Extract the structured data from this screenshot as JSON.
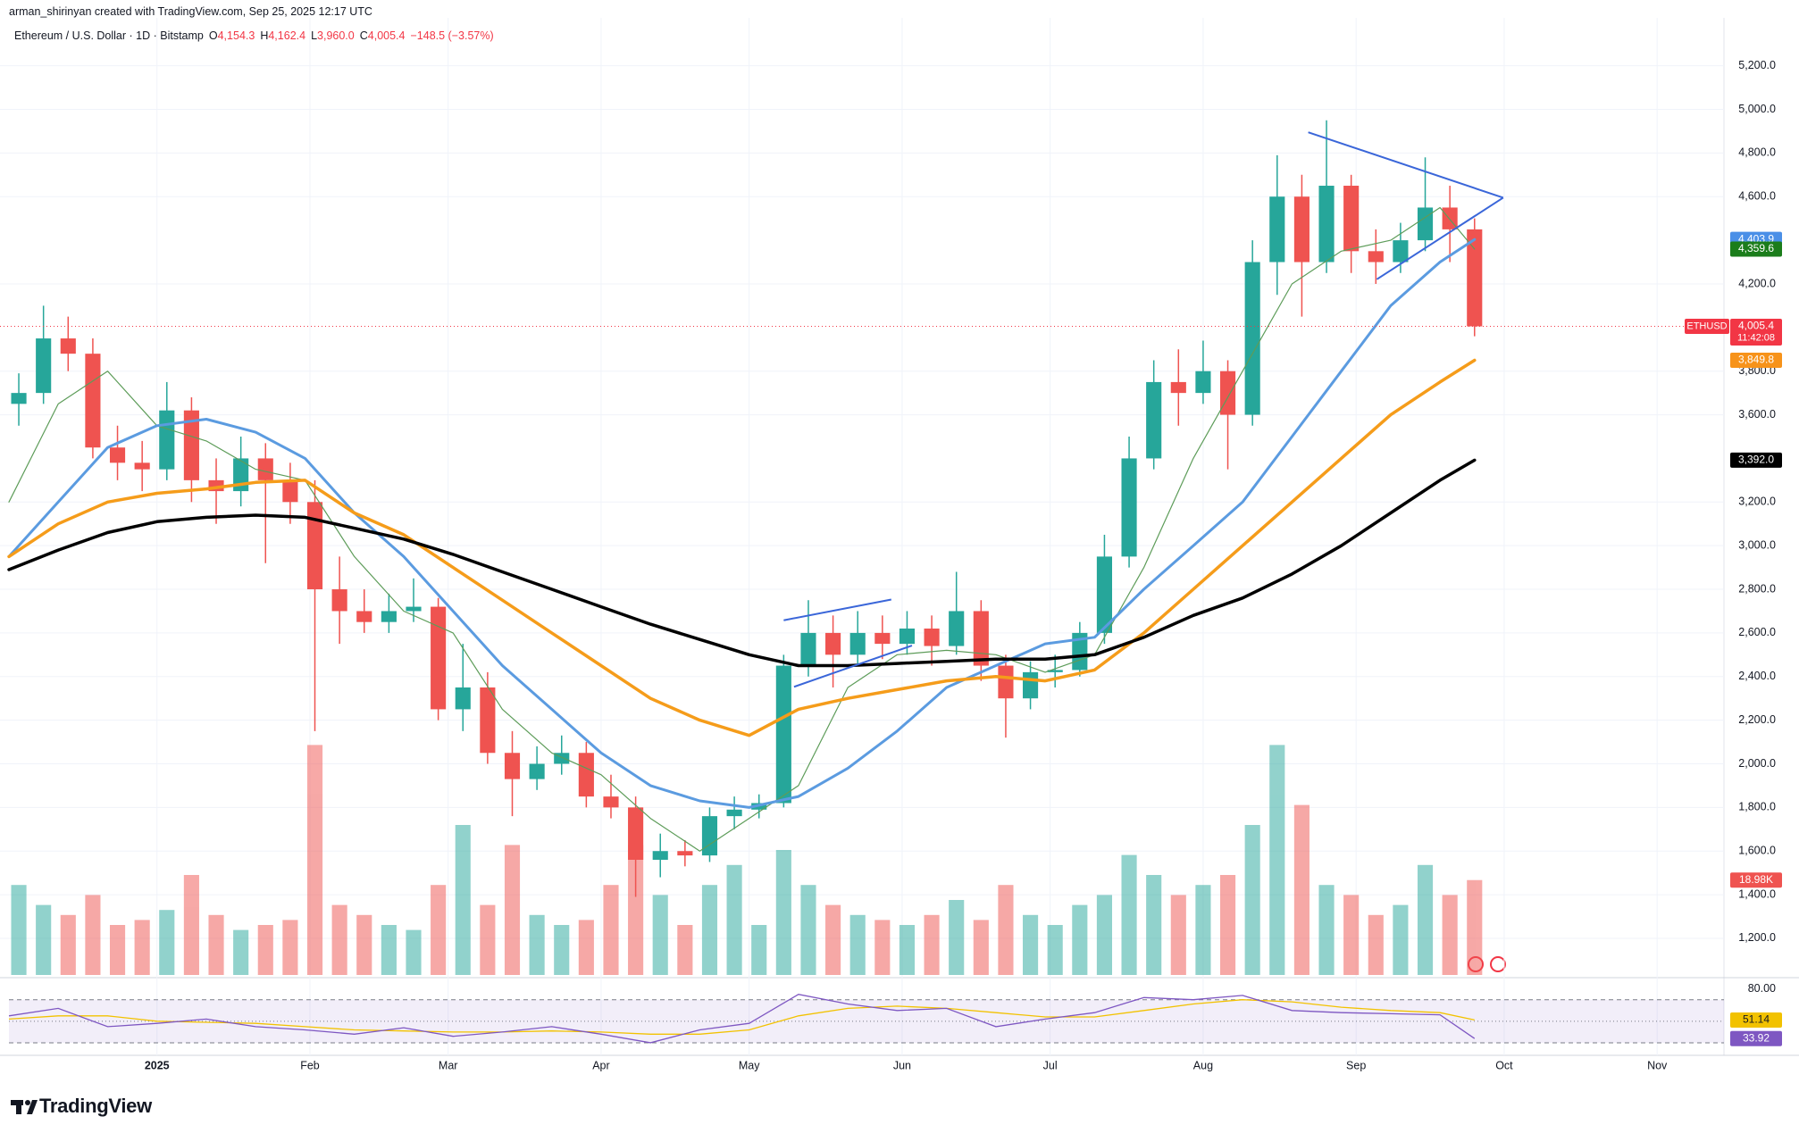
{
  "header": {
    "credit": "arman_shirinyan created with TradingView.com, Sep 25, 2025 12:17 UTC",
    "symbol": "Ethereum / U.S. Dollar · 1D · Bitstamp",
    "ohlc": [
      [
        "O",
        "4,154.3"
      ],
      [
        "H",
        "4,162.4"
      ],
      [
        "L",
        "3,960.0"
      ],
      [
        "C",
        "4,005.4"
      ]
    ],
    "change": "−148.5 (−3.57%)"
  },
  "chart_data": {
    "type": "candlestick",
    "xlim": [
      -30,
      317
    ],
    "xticks": [
      {
        "value": 0,
        "label": "2025"
      },
      {
        "value": 31,
        "label": "Feb"
      },
      {
        "value": 59,
        "label": "Mar"
      },
      {
        "value": 90,
        "label": "Apr"
      },
      {
        "value": 120,
        "label": "May"
      },
      {
        "value": 151,
        "label": "Jun"
      },
      {
        "value": 181,
        "label": "Jul"
      },
      {
        "value": 212,
        "label": "Aug"
      },
      {
        "value": 243,
        "label": "Sep"
      },
      {
        "value": 273,
        "label": "Oct"
      },
      {
        "value": 304,
        "label": "Nov"
      }
    ],
    "ylim": [
      1032,
      5395
    ],
    "yticks": [
      {
        "value": 5200,
        "label": "5,200.0"
      },
      {
        "value": 5000,
        "label": "5,000.0"
      },
      {
        "value": 4800,
        "label": "4,800.0"
      },
      {
        "value": 4600,
        "label": "4,600.0"
      },
      {
        "value": 4200,
        "label": "4,200.0"
      },
      {
        "value": 3800,
        "label": "3,800.0"
      },
      {
        "value": 3600,
        "label": "3,600.0"
      },
      {
        "value": 3200,
        "label": "3,200.0"
      },
      {
        "value": 3000,
        "label": "3,000.0"
      },
      {
        "value": 2800,
        "label": "2,800.0"
      },
      {
        "value": 2600,
        "label": "2,600.0"
      },
      {
        "value": 2400,
        "label": "2,400.0"
      },
      {
        "value": 2200,
        "label": "2,200.0"
      },
      {
        "value": 2000,
        "label": "2,000.0"
      },
      {
        "value": 1800,
        "label": "1,800.0"
      },
      {
        "value": 1600,
        "label": "1,600.0"
      },
      {
        "value": 1400,
        "label": "1,400.0"
      },
      {
        "value": 1200,
        "label": "1,200.0"
      }
    ],
    "grid": true,
    "up_color": "#26a69a",
    "down_color": "#ef5350",
    "candles": {
      "x": [
        -28,
        -23,
        -18,
        -13,
        -8,
        -3,
        2,
        7,
        12,
        17,
        22,
        27,
        32,
        37,
        42,
        47,
        52,
        57,
        62,
        67,
        72,
        77,
        82,
        87,
        92,
        97,
        102,
        107,
        112,
        117,
        122,
        127,
        132,
        137,
        142,
        147,
        152,
        157,
        162,
        167,
        172,
        177,
        182,
        187,
        192,
        197,
        202,
        207,
        212,
        217,
        222,
        227,
        232,
        237,
        242,
        247,
        252,
        257,
        262,
        267
      ],
      "open": [
        3650,
        3700,
        3950,
        3880,
        3450,
        3380,
        3350,
        3620,
        3300,
        3250,
        3400,
        3300,
        3200,
        2800,
        2700,
        2650,
        2700,
        2720,
        2250,
        2350,
        2050,
        1930,
        2000,
        2050,
        1850,
        1800,
        1560,
        1600,
        1580,
        1760,
        1790,
        1820,
        2450,
        2600,
        2500,
        2600,
        2550,
        2620,
        2540,
        2700,
        2450,
        2300,
        2420,
        2430,
        2600,
        2950,
        3400,
        3750,
        3700,
        3800,
        3600,
        4300,
        4600,
        4300,
        4650,
        4350,
        4300,
        4400,
        4550,
        4450
      ],
      "high": [
        3790,
        4100,
        4050,
        3950,
        3550,
        3480,
        3750,
        3680,
        3400,
        3500,
        3470,
        3380,
        3300,
        2950,
        2800,
        2780,
        2850,
        2760,
        2550,
        2420,
        2150,
        2080,
        2130,
        2100,
        1950,
        1850,
        1680,
        1650,
        1800,
        1850,
        1860,
        2500,
        2750,
        2680,
        2700,
        2680,
        2700,
        2680,
        2880,
        2750,
        2500,
        2470,
        2500,
        2650,
        3050,
        3500,
        3850,
        3900,
        3940,
        3850,
        4400,
        4790,
        4700,
        4950,
        4700,
        4450,
        4480,
        4780,
        4650,
        4500
      ],
      "low": [
        3550,
        3650,
        3800,
        3400,
        3300,
        3250,
        3300,
        3200,
        3100,
        3180,
        2920,
        3100,
        2150,
        2550,
        2600,
        2600,
        2650,
        2200,
        2150,
        2000,
        1760,
        1880,
        1950,
        1800,
        1750,
        1390,
        1480,
        1530,
        1550,
        1700,
        1750,
        1800,
        2400,
        2350,
        2450,
        2480,
        2500,
        2450,
        2500,
        2380,
        2120,
        2250,
        2350,
        2400,
        2550,
        2900,
        3350,
        3550,
        3650,
        3350,
        3550,
        4150,
        4050,
        4250,
        4250,
        4200,
        4250,
        4350,
        4300,
        3960
      ],
      "close": [
        3700,
        3950,
        3880,
        3450,
        3380,
        3350,
        3620,
        3300,
        3250,
        3400,
        3300,
        3200,
        2800,
        2700,
        2650,
        2700,
        2720,
        2250,
        2350,
        2050,
        1930,
        2000,
        2050,
        1850,
        1800,
        1560,
        1600,
        1580,
        1760,
        1790,
        1820,
        2450,
        2600,
        2500,
        2600,
        2550,
        2620,
        2540,
        2700,
        2450,
        2300,
        2420,
        2430,
        2600,
        2950,
        3400,
        3750,
        3700,
        3800,
        3600,
        4300,
        4600,
        4300,
        4650,
        4350,
        4300,
        4400,
        4550,
        4450,
        4005.4
      ]
    },
    "volume": {
      "vlim": [
        0,
        50
      ],
      "values": [
        18,
        14,
        12,
        16,
        10,
        11,
        13,
        20,
        12,
        9,
        10,
        11,
        46,
        14,
        12,
        10,
        9,
        18,
        30,
        14,
        26,
        12,
        10,
        11,
        18,
        26,
        16,
        10,
        18,
        22,
        10,
        25,
        18,
        14,
        12,
        11,
        10,
        12,
        15,
        11,
        18,
        12,
        10,
        14,
        16,
        24,
        20,
        16,
        18,
        20,
        30,
        46,
        34,
        18,
        16,
        12,
        14,
        22,
        16,
        18.98
      ],
      "tag": {
        "value": 18.98,
        "label": "18.98K"
      }
    },
    "ma_x": [
      -30,
      -20,
      -10,
      0,
      10,
      20,
      30,
      40,
      50,
      60,
      70,
      80,
      90,
      100,
      110,
      120,
      130,
      140,
      150,
      160,
      170,
      180,
      190,
      200,
      210,
      220,
      230,
      240,
      250,
      260,
      267
    ],
    "moving_averages": [
      {
        "color": "#5d9c59",
        "width": 1.2,
        "values": [
          3200,
          3650,
          3800,
          3550,
          3480,
          3350,
          3300,
          2950,
          2700,
          2600,
          2250,
          2050,
          1950,
          1750,
          1600,
          1750,
          1900,
          2350,
          2500,
          2520,
          2500,
          2420,
          2500,
          2900,
          3400,
          3800,
          4200,
          4350,
          4400,
          4550,
          4359.6
        ]
      },
      {
        "color": "#5b9be0",
        "width": 3,
        "values": [
          2950,
          3200,
          3450,
          3550,
          3580,
          3520,
          3400,
          3150,
          2950,
          2700,
          2450,
          2250,
          2050,
          1900,
          1830,
          1800,
          1850,
          1980,
          2150,
          2350,
          2450,
          2550,
          2580,
          2800,
          3000,
          3200,
          3500,
          3800,
          4100,
          4300,
          4403.9
        ]
      },
      {
        "color": "#f59c1a",
        "width": 3.5,
        "values": [
          2950,
          3100,
          3200,
          3240,
          3260,
          3290,
          3300,
          3150,
          3050,
          2900,
          2750,
          2600,
          2450,
          2300,
          2200,
          2130,
          2250,
          2300,
          2340,
          2380,
          2400,
          2380,
          2430,
          2600,
          2800,
          3000,
          3200,
          3400,
          3600,
          3750,
          3849.8
        ]
      },
      {
        "color": "#000000",
        "width": 3.5,
        "values": [
          2890,
          2980,
          3060,
          3110,
          3130,
          3140,
          3130,
          3080,
          3030,
          2960,
          2880,
          2800,
          2720,
          2640,
          2570,
          2500,
          2450,
          2450,
          2460,
          2470,
          2480,
          2480,
          2500,
          2580,
          2680,
          2760,
          2870,
          3000,
          3150,
          3300,
          3392
        ]
      }
    ],
    "price_tags": [
      {
        "value": 4403.9,
        "label": "4,403.9",
        "color": "#4a8fe7"
      },
      {
        "value": 4359.6,
        "label": "4,359.6",
        "color": "#1b7d1b"
      },
      {
        "value": 4005.4,
        "label": "4,005.4",
        "name": "ETHUSD",
        "sub": "11:42:08",
        "color": "#f23645"
      },
      {
        "value": 3849.8,
        "label": "3,849.8",
        "color": "#f7931a"
      },
      {
        "value": 3392,
        "label": "3,392.0",
        "color": "#000000"
      }
    ],
    "drawings": [
      {
        "color": "#3a66d9",
        "points": [
          [
            127,
            2658
          ],
          [
            148.8,
            2753
          ]
        ]
      },
      {
        "color": "#3a66d9",
        "points": [
          [
            129.1,
            2353
          ],
          [
            153,
            2542
          ]
        ]
      },
      {
        "color": "#3a66d9",
        "points": [
          [
            233.3,
            4895
          ],
          [
            272.8,
            4595
          ]
        ]
      },
      {
        "color": "#3a66d9",
        "points": [
          [
            247.2,
            4221
          ],
          [
            272.8,
            4595
          ]
        ]
      }
    ],
    "rsi": {
      "ylim": [
        20,
        88
      ],
      "yticks": [
        {
          "value": 80,
          "label": "80.00"
        }
      ],
      "levels": [
        30,
        50,
        70
      ],
      "color": "#7e57c2",
      "ma_color": "#f2c200",
      "values": [
        55,
        62,
        45,
        48,
        52,
        45,
        42,
        38,
        44,
        36,
        40,
        45,
        38,
        30,
        42,
        48,
        75,
        66,
        60,
        62,
        45,
        52,
        58,
        72,
        70,
        74,
        60,
        58,
        57,
        56,
        33.92
      ],
      "ma_values": [
        52,
        55,
        55,
        50,
        49,
        48,
        45,
        42,
        41,
        40,
        40,
        41,
        40,
        38,
        38,
        42,
        55,
        62,
        64,
        62,
        58,
        54,
        54,
        60,
        66,
        70,
        68,
        63,
        60,
        58,
        51.14
      ],
      "tags": [
        {
          "value": 51.14,
          "label": "51.14",
          "color": "#f2c200"
        },
        {
          "value": 33.92,
          "label": "33.92",
          "color": "#7e57c2"
        }
      ]
    }
  },
  "footer": {
    "brand": "TradingView"
  }
}
